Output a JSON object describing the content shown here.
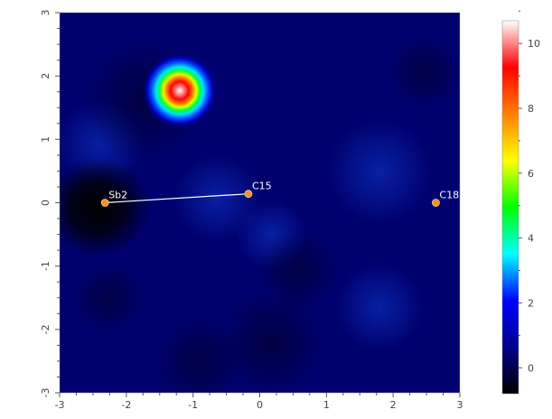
{
  "chart_data": {
    "type": "heatmap",
    "title": "",
    "xlabel": "",
    "ylabel": "",
    "xlim": [
      -3,
      3
    ],
    "ylim": [
      -3,
      3
    ],
    "x_ticks": [
      "-3",
      "-2",
      "-1",
      "0",
      "1",
      "2",
      "3"
    ],
    "y_ticks": [
      "-3",
      "-2",
      "-1",
      "0",
      "1",
      "2",
      "3"
    ],
    "colorbar": {
      "range": [
        -0.8,
        10.7
      ],
      "ticks": [
        "0",
        "2",
        "4",
        "6",
        "8",
        "10"
      ],
      "colormap": [
        "#000000",
        "#00008b",
        "#0000ff",
        "#00ffff",
        "#00ff00",
        "#ffff00",
        "#ff8000",
        "#ff0000",
        "#ffffff"
      ]
    },
    "peaks": [
      {
        "x": -1.2,
        "y": 1.77,
        "value": 10.7
      },
      {
        "x": -2.3,
        "y": 0.0,
        "value": -0.8
      }
    ],
    "atoms": [
      {
        "label": "Sb2",
        "x": -2.32,
        "y": 0.0
      },
      {
        "label": "C15",
        "x": -0.17,
        "y": 0.14
      },
      {
        "label": "C18",
        "x": 2.64,
        "y": 0.0
      }
    ],
    "bonds": [
      [
        "Sb2",
        "C15"
      ]
    ],
    "atom_color": "#f0902a",
    "bond_color": "#ffffff",
    "background_value_color": "#00006e"
  }
}
